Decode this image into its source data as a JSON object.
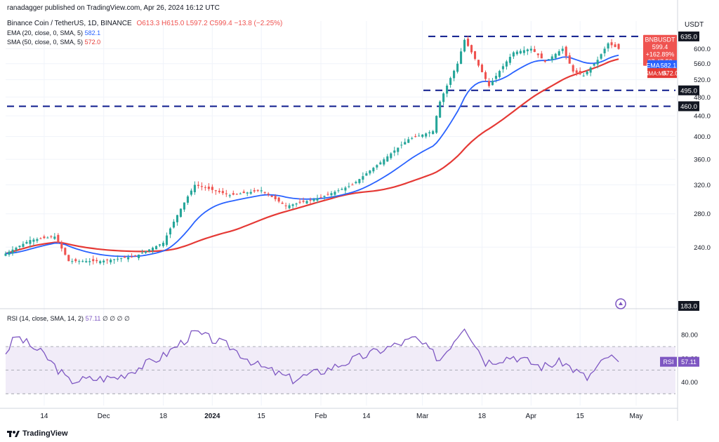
{
  "header": {
    "publisher": "ranadagger published on TradingView.com, Apr 26, 2024 16:12 UTC",
    "symbol_line": "Binance Coin / TetherUS, 1D, BINANCE",
    "ohlc": "O613.3  H615.0  L597.2  C599.4  −13.8 (−2.25%)",
    "ema_label": "EMA (20, close, 0, SMA, 5)",
    "ema_value": "582.1",
    "sma_label": "SMA (50, close, 0, SMA, 5)",
    "sma_value": "572.0",
    "currency": "USDT"
  },
  "rsi_header": {
    "label": "RSI (14, close, SMA, 14, 2)",
    "value": "57.11",
    "extra": "∅ ∅ ∅ ∅"
  },
  "price_labels": {
    "symbol": "BNBUSDT",
    "price": "599.4",
    "change": "+162.89%",
    "countdown": "07:47:58",
    "ema_tag": "EMA",
    "ema": "582.1",
    "sma_tag": "SMA:MA",
    "sma": "572.0",
    "rsi_tag": "RSI",
    "rsi": "57.11"
  },
  "footer": {
    "brand": "TradingView"
  },
  "colors": {
    "up": "#26a69a",
    "down": "#ef5350",
    "ema": "#2962ff",
    "sma": "#e53935",
    "level_line": "#0d1b8c",
    "rsi_line": "#7e57c2",
    "rsi_band": "#ede7f6"
  },
  "chart_data": {
    "type": "candlestick",
    "price_axis": {
      "scale": "log",
      "ylim": [
        183,
        660
      ],
      "ticks": [
        240,
        280,
        320,
        360,
        400,
        440,
        480,
        520,
        560,
        600
      ]
    },
    "boxed_ticks": [
      183.0,
      460.0,
      495.0,
      635.0
    ],
    "x_ticks": [
      "14",
      "Dec",
      "18",
      "2024",
      "15",
      "Feb",
      "14",
      "Mar",
      "18",
      "Apr",
      "15",
      "May"
    ],
    "horizontal_levels": [
      635,
      495,
      460
    ],
    "anchors": [
      {
        "date": "2023-11-03",
        "close": 233
      },
      {
        "date": "2023-11-10",
        "close": 248
      },
      {
        "date": "2023-11-17",
        "close": 252
      },
      {
        "date": "2023-11-21",
        "close": 225
      },
      {
        "date": "2023-11-30",
        "close": 225
      },
      {
        "date": "2023-12-10",
        "close": 230
      },
      {
        "date": "2023-12-18",
        "close": 245
      },
      {
        "date": "2023-12-27",
        "close": 320
      },
      {
        "date": "2024-01-06",
        "close": 305
      },
      {
        "date": "2024-01-15",
        "close": 312
      },
      {
        "date": "2024-01-22",
        "close": 290
      },
      {
        "date": "2024-02-01",
        "close": 302
      },
      {
        "date": "2024-02-10",
        "close": 320
      },
      {
        "date": "2024-02-18",
        "close": 355
      },
      {
        "date": "2024-02-26",
        "close": 395
      },
      {
        "date": "2024-03-04",
        "close": 410
      },
      {
        "date": "2024-03-06",
        "close": 470
      },
      {
        "date": "2024-03-11",
        "close": 560
      },
      {
        "date": "2024-03-13",
        "close": 625
      },
      {
        "date": "2024-03-17",
        "close": 555
      },
      {
        "date": "2024-03-20",
        "close": 505
      },
      {
        "date": "2024-03-27",
        "close": 590
      },
      {
        "date": "2024-04-01",
        "close": 600
      },
      {
        "date": "2024-04-05",
        "close": 565
      },
      {
        "date": "2024-04-10",
        "close": 600
      },
      {
        "date": "2024-04-13",
        "close": 540
      },
      {
        "date": "2024-04-16",
        "close": 530
      },
      {
        "date": "2024-04-20",
        "close": 570
      },
      {
        "date": "2024-04-23",
        "close": 615
      },
      {
        "date": "2024-04-26",
        "close": 599.4
      }
    ],
    "ema20_last": 582.1,
    "sma50_last": 572.0,
    "rsi": {
      "ylim": [
        20,
        95
      ],
      "ticks": [
        40,
        60,
        80
      ],
      "band": [
        30,
        70
      ],
      "anchors": [
        {
          "date": "2023-11-03",
          "value": 65
        },
        {
          "date": "2023-11-06",
          "value": 79
        },
        {
          "date": "2023-11-14",
          "value": 63
        },
        {
          "date": "2023-11-21",
          "value": 41
        },
        {
          "date": "2023-12-05",
          "value": 44
        },
        {
          "date": "2023-12-18",
          "value": 62
        },
        {
          "date": "2023-12-27",
          "value": 82
        },
        {
          "date": "2024-01-06",
          "value": 70
        },
        {
          "date": "2024-01-14",
          "value": 54
        },
        {
          "date": "2024-01-24",
          "value": 42
        },
        {
          "date": "2024-02-02",
          "value": 50
        },
        {
          "date": "2024-02-15",
          "value": 64
        },
        {
          "date": "2024-02-28",
          "value": 77
        },
        {
          "date": "2024-03-06",
          "value": 59
        },
        {
          "date": "2024-03-13",
          "value": 88
        },
        {
          "date": "2024-03-19",
          "value": 57
        },
        {
          "date": "2024-03-27",
          "value": 62
        },
        {
          "date": "2024-04-04",
          "value": 53
        },
        {
          "date": "2024-04-10",
          "value": 57
        },
        {
          "date": "2024-04-17",
          "value": 43
        },
        {
          "date": "2024-04-23",
          "value": 62
        },
        {
          "date": "2024-04-26",
          "value": 57.11
        }
      ]
    }
  }
}
